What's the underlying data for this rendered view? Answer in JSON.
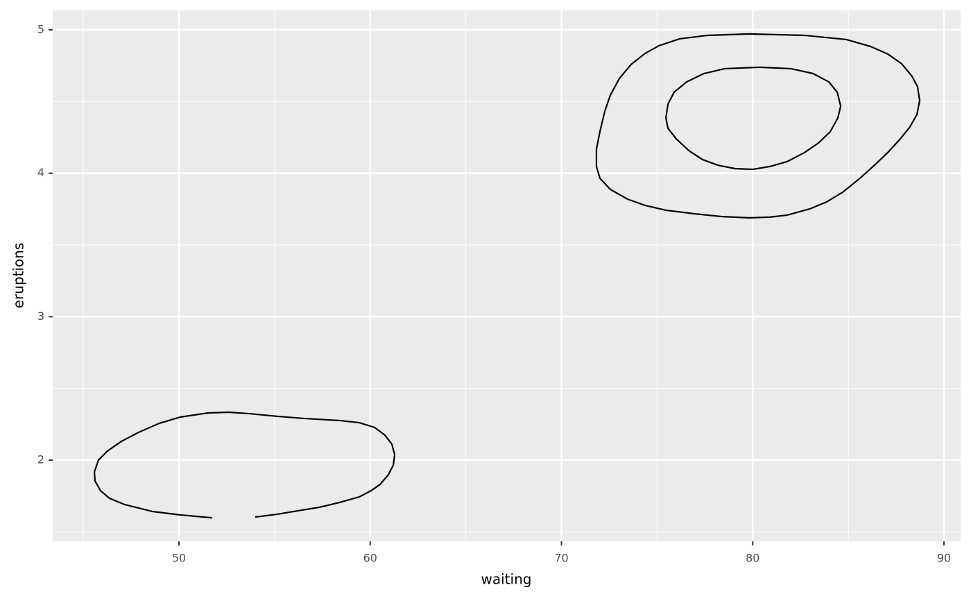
{
  "chart_data": {
    "type": "contour",
    "x_label": "waiting",
    "y_label": "eruptions",
    "xlim": [
      43.4,
      90.87
    ],
    "ylim": [
      1.434,
      5.135
    ],
    "xticks": [
      50,
      60,
      70,
      80,
      90
    ],
    "yticks": [
      2,
      3,
      4,
      5
    ],
    "x_minor": [
      45,
      55,
      65,
      75,
      85
    ],
    "y_minor": [
      1.5,
      2.5,
      3.5,
      4.5
    ],
    "grid": true,
    "color": "#000000",
    "series": [
      {
        "x": [
          79.81,
          82.71,
          84.89,
          86.16,
          87.06,
          87.79,
          88.33,
          88.62,
          88.73,
          88.59,
          88.22,
          87.72,
          87.06,
          86.41,
          85.61,
          84.71,
          83.87,
          83.0,
          81.8,
          80.9,
          79.81,
          78.36,
          76.91,
          75.46,
          74.37,
          73.46,
          72.56,
          72.01,
          71.83,
          71.83,
          72.01,
          72.27,
          72.56,
          73.03,
          73.64,
          74.37,
          75.1,
          76.18,
          77.63,
          79.81
        ],
        "y": [
          4.971,
          4.961,
          4.932,
          4.884,
          4.831,
          4.763,
          4.676,
          4.603,
          4.506,
          4.41,
          4.323,
          4.24,
          4.144,
          4.061,
          3.965,
          3.868,
          3.8,
          3.752,
          3.708,
          3.694,
          3.689,
          3.698,
          3.718,
          3.742,
          3.776,
          3.819,
          3.887,
          3.965,
          4.047,
          4.168,
          4.289,
          4.434,
          4.545,
          4.661,
          4.758,
          4.835,
          4.889,
          4.937,
          4.961,
          4.971
        ]
      },
      {
        "x": [
          80.35,
          81.99,
          83.15,
          83.98,
          84.42,
          84.6,
          84.45,
          84.05,
          83.44,
          82.71,
          81.8,
          80.9,
          79.99,
          79.08,
          78.18,
          77.38,
          76.66,
          76.0,
          75.57,
          75.46,
          75.57,
          75.89,
          76.55,
          77.45,
          78.54,
          80.35
        ],
        "y": [
          4.739,
          4.729,
          4.695,
          4.637,
          4.565,
          4.468,
          4.385,
          4.289,
          4.211,
          4.144,
          4.081,
          4.047,
          4.027,
          4.032,
          4.056,
          4.095,
          4.158,
          4.24,
          4.313,
          4.385,
          4.482,
          4.565,
          4.637,
          4.695,
          4.729,
          4.739
        ]
      },
      {
        "x": [
          51.74,
          50.07,
          48.62,
          47.17,
          46.37,
          45.9,
          45.61,
          45.58,
          45.79,
          46.26,
          46.99,
          47.9,
          48.98,
          50.07,
          51.52,
          52.61,
          53.7,
          55.15,
          56.6,
          58.41,
          59.43,
          60.23,
          60.77,
          61.13,
          61.28,
          61.21,
          60.95,
          60.52,
          60.05,
          59.43,
          58.41,
          57.33,
          56.24,
          55.15,
          53.99
        ],
        "y": [
          1.598,
          1.618,
          1.642,
          1.69,
          1.734,
          1.787,
          1.855,
          1.918,
          2.0,
          2.063,
          2.131,
          2.194,
          2.257,
          2.3,
          2.329,
          2.334,
          2.324,
          2.305,
          2.29,
          2.276,
          2.261,
          2.228,
          2.174,
          2.112,
          2.039,
          1.966,
          1.898,
          1.831,
          1.787,
          1.744,
          1.705,
          1.671,
          1.647,
          1.623,
          1.603
        ]
      }
    ]
  }
}
